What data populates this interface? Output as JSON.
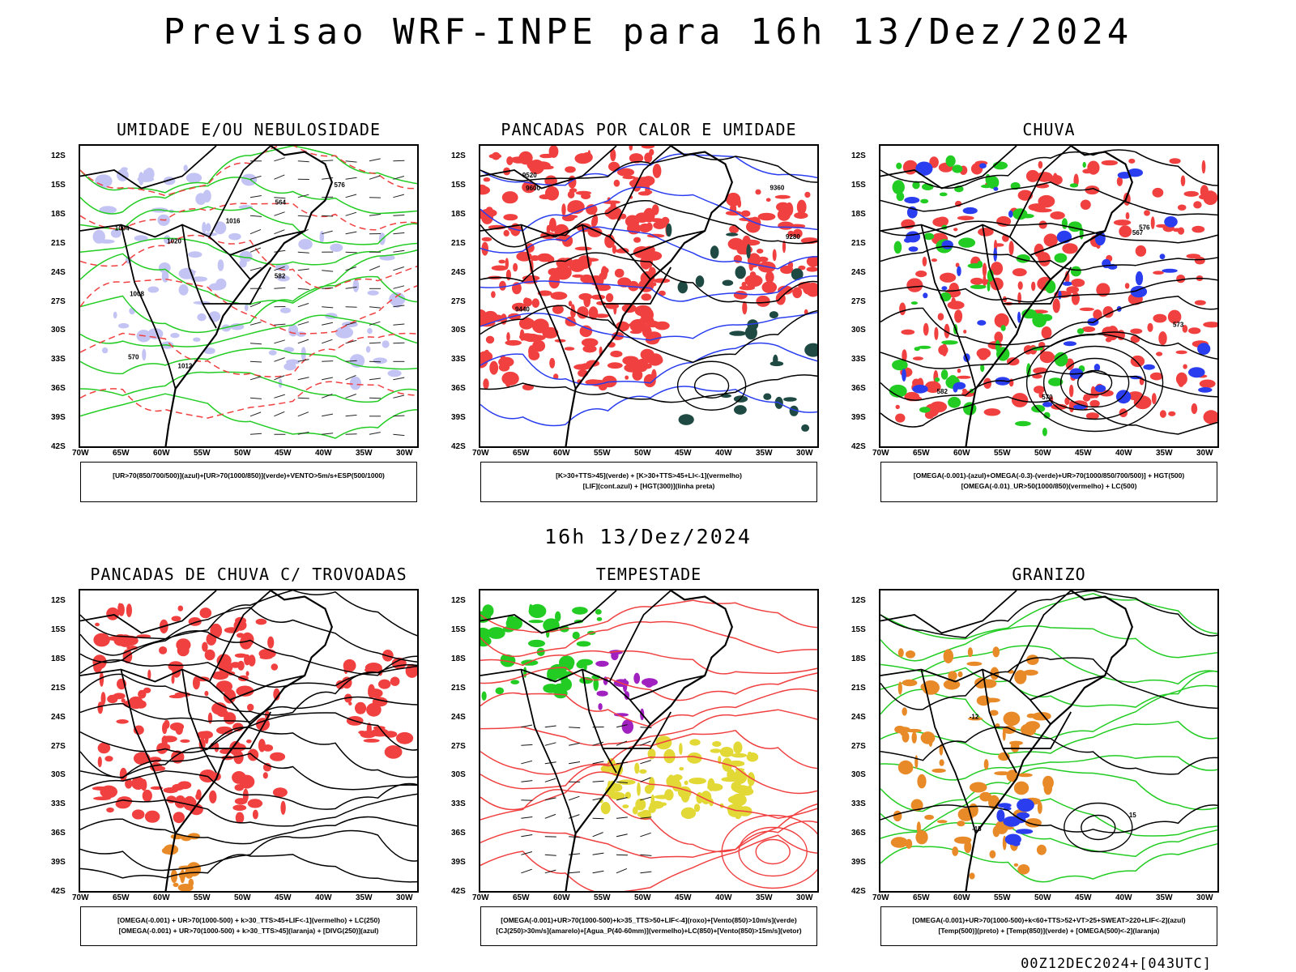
{
  "page": {
    "title": "Previsao WRF-INPE  para 16h 13/Dez/2024",
    "middle_label": "16h 13/Dez/2024",
    "footer": "00Z12DEC2024+[043UTC]"
  },
  "colors": {
    "red": "#f04040",
    "green": "#22cc22",
    "blue": "#2a3ef0",
    "lavender": "#c4c4f4",
    "dark_teal": "#1f4a44",
    "yellow": "#e2d836",
    "orange": "#e88a28",
    "purple": "#a020c0",
    "black": "#000000"
  },
  "axes": {
    "lat_labels": [
      "12S",
      "15S",
      "18S",
      "21S",
      "24S",
      "27S",
      "30S",
      "33S",
      "36S",
      "39S",
      "42S"
    ],
    "lon_labels": [
      "70W",
      "65W",
      "60W",
      "55W",
      "50W",
      "45W",
      "40W",
      "35W",
      "30W"
    ]
  },
  "chart_data": [
    {
      "type": "heatmap",
      "title": "UMIDADE E/OU NEBULOSIDADE",
      "legend": [
        "[UR>70(850/700/500)](azul)+[UR>70(1000/850)](verde)+VENTO>5m/s+ESP(500/1000)"
      ],
      "lat_range": [
        -42,
        -10
      ],
      "lon_range": [
        -70,
        -28
      ],
      "contour_labels": [
        "1004",
        "1012",
        "1008",
        "1016",
        "1020",
        "570",
        "576",
        "582",
        "564"
      ]
    },
    {
      "type": "heatmap",
      "title": "PANCADAS POR CALOR E UMIDADE",
      "legend": [
        "[K>30+TTS>45](verde) + [K>30+TTS>45+LI<-1](vermelho)",
        "[LIF](cont.azul) + [HGT(300)](linha preta)"
      ],
      "lat_range": [
        -42,
        -10
      ],
      "lon_range": [
        -70,
        -28
      ],
      "contour_labels": [
        "9600",
        "9520",
        "9440",
        "9360",
        "9280"
      ]
    },
    {
      "type": "heatmap",
      "title": "CHUVA",
      "legend": [
        "[OMEGA(-0.001)-(azul)+OMEGA(-0.3)-(verde)+UR>70(1000/850/700/500)] + HGT(500)",
        "[OMEGA(-0.01)_UR>50(1000/850)(vermelho) + LC(500)"
      ],
      "lat_range": [
        -42,
        -10
      ],
      "lon_range": [
        -70,
        -28
      ],
      "contour_labels": [
        "582",
        "576",
        "573",
        "570",
        "567"
      ]
    },
    {
      "type": "heatmap",
      "title": "PANCADAS DE CHUVA C/ TROVOADAS",
      "legend": [
        "[OMEGA(-0.001) + UR>70(1000-500) + k>30_TTS>45+LIF<-1](vermelho) + LC(250)",
        "[OMEGA(-0.001) + UR>70(1000-500) + k>30_TTS>45](laranja) + [DIVG(250)](azul)"
      ],
      "lat_range": [
        -42,
        -10
      ],
      "lon_range": [
        -70,
        -28
      ],
      "contour_labels": []
    },
    {
      "type": "heatmap",
      "title": "TEMPESTADE",
      "legend": [
        "[OMEGA(-0.001)+UR>70(1000-500)+k>35_TTS>50+LIF<-4](roxo)+[Vento(850)>10m/s](verde)",
        "[CJ(250)>30m/s](amarelo)+[Agua_P(40-60mm)](vermelho)+LC(850)+[Vento(850)>15m/s](vetor)"
      ],
      "lat_range": [
        -42,
        -10
      ],
      "lon_range": [
        -70,
        -28
      ],
      "contour_labels": []
    },
    {
      "type": "heatmap",
      "title": "GRANIZO",
      "legend": [
        "[OMEGA(-0.001)+UR>70(1000-500)+k<60+TTS>52+VT>25+SWEAT>220+LIF<-2](azul)",
        "[Temp(500)](preto) + [Temp(850)](verde) + [OMEGA(500)<-2](laranja)"
      ],
      "lat_range": [
        -42,
        -10
      ],
      "lon_range": [
        -70,
        -28
      ],
      "contour_labels": [
        "-12",
        "-15",
        "15"
      ]
    }
  ]
}
